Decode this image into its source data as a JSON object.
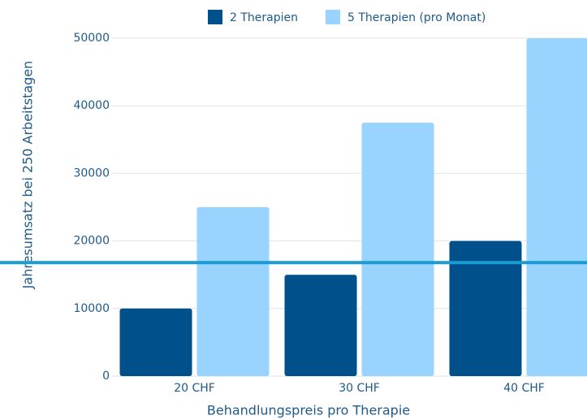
{
  "chart_data": {
    "type": "bar",
    "categories": [
      "20 CHF",
      "30 CHF",
      "40 CHF"
    ],
    "series": [
      {
        "name": "2 Therapien",
        "color": "#00518b",
        "values": [
          10000,
          15000,
          20000
        ]
      },
      {
        "name": "5 Therapien (pro Monat)",
        "color": "#99d3ff",
        "values": [
          25000,
          37500,
          50000
        ]
      }
    ],
    "ylim": [
      0,
      50000
    ],
    "yticks": [
      0,
      10000,
      20000,
      30000,
      40000,
      50000
    ],
    "grid": true,
    "y_label": "Jahresumsatz bei 250 Arbeitstagen",
    "x_label": "Behandlungspreis pro Therapie",
    "reference_line": {
      "value": 16800,
      "color": "#1a9bd1"
    },
    "legend": "top"
  }
}
